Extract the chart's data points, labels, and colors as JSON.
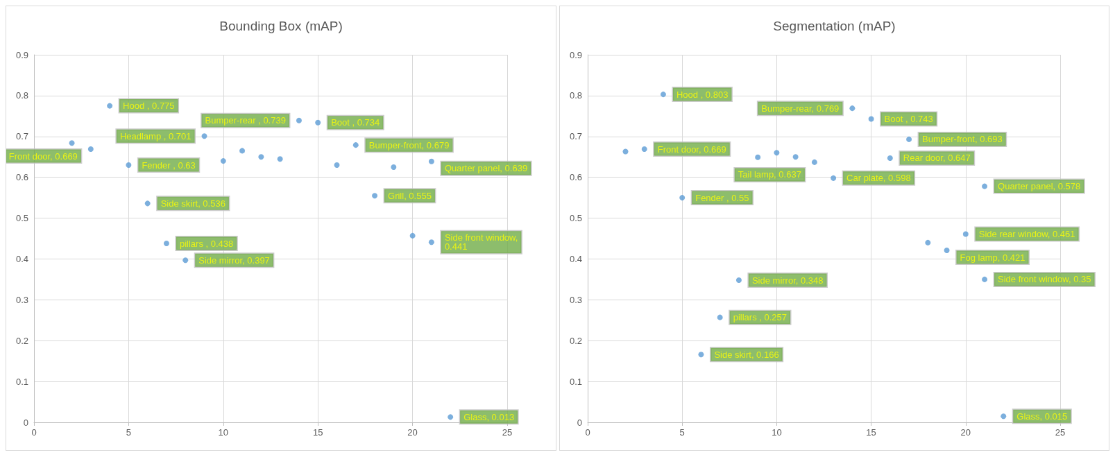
{
  "chart_data": [
    {
      "type": "scatter",
      "title": "Bounding Box (mAP)",
      "x": [
        2,
        3,
        4,
        5,
        6,
        7,
        8,
        9,
        10,
        11,
        12,
        13,
        14,
        15,
        16,
        17,
        18,
        19,
        20,
        21,
        21,
        22
      ],
      "values": [
        0.684,
        0.669,
        0.775,
        0.63,
        0.536,
        0.438,
        0.397,
        0.701,
        0.64,
        0.665,
        0.65,
        0.645,
        0.739,
        0.734,
        0.63,
        0.679,
        0.555,
        0.625,
        0.457,
        0.639,
        0.441,
        0.013
      ],
      "value_labels": [
        null,
        "Front door, 0.669",
        "Hood , 0.775",
        "Fender , 0.63",
        "Side skirt, 0.536",
        "pillars , 0.438",
        "Side mirror, 0.397",
        "Headlamp , 0.701",
        null,
        null,
        null,
        null,
        "Bumper-rear , 0.739",
        "Boot , 0.734",
        null,
        "Bumper-front, 0.679",
        "Grill, 0.555",
        null,
        null,
        "Quarter panel, 0.639",
        "Side front window,\n0.441",
        "Glass, 0.013"
      ],
      "color": "#5b9bd5",
      "xlim": [
        0,
        25
      ],
      "xticks": [
        0,
        5,
        10,
        15,
        20,
        25
      ],
      "ylim": [
        0,
        0.9
      ],
      "yticks": [
        0,
        0.1,
        0.2,
        0.3,
        0.4,
        0.5,
        0.6,
        0.7,
        0.8,
        0.9
      ],
      "grid": true,
      "marker": "circle"
    },
    {
      "type": "scatter",
      "title": "Segmentation (mAP)",
      "x": [
        2,
        3,
        4,
        5,
        6,
        7,
        8,
        9,
        10,
        11,
        12,
        13,
        14,
        15,
        16,
        17,
        18,
        19,
        20,
        21,
        21,
        22
      ],
      "values": [
        0.663,
        0.669,
        0.803,
        0.55,
        0.166,
        0.257,
        0.348,
        0.649,
        0.66,
        0.65,
        0.637,
        0.598,
        0.769,
        0.743,
        0.647,
        0.693,
        0.44,
        0.421,
        0.461,
        0.578,
        0.35,
        0.015
      ],
      "value_labels": [
        null,
        "Front door, 0.669",
        "Hood , 0.803",
        "Fender , 0.55",
        "Side skirt, 0.166",
        "pillars , 0.257",
        "Side mirror, 0.348",
        null,
        null,
        null,
        "Tail lamp, 0.637",
        "Car plate, 0.598",
        "Bumper-rear, 0.769",
        "Boot , 0.743",
        "Rear door, 0.647",
        "Bumper-front, 0.693",
        null,
        "Fog lamp, 0.421",
        "Side rear window, 0.461",
        "Quarter panel, 0.578",
        "Side front window, 0.35",
        "Glass, 0.015"
      ],
      "color": "#5b9bd5",
      "xlim": [
        0,
        25
      ],
      "xticks": [
        0,
        5,
        10,
        15,
        20,
        25
      ],
      "ylim": [
        0,
        0.9
      ],
      "yticks": [
        0,
        0.1,
        0.2,
        0.3,
        0.4,
        0.5,
        0.6,
        0.7,
        0.8,
        0.9
      ],
      "grid": true,
      "marker": "circle"
    }
  ]
}
